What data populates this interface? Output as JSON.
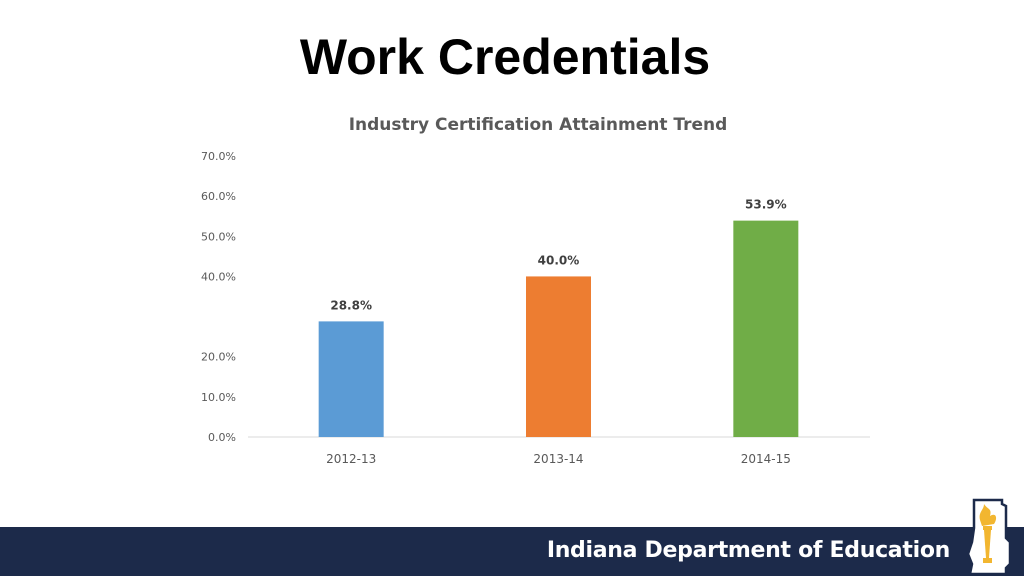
{
  "slide": {
    "title": "Work Credentials"
  },
  "chart_data": {
    "type": "bar",
    "title": "Industry Certification Attainment Trend",
    "categories": [
      "2012-13",
      "2013-14",
      "2014-15"
    ],
    "values": [
      28.8,
      40.0,
      53.9
    ],
    "data_labels": [
      "28.8%",
      "40.0%",
      "53.9%"
    ],
    "colors": [
      "#5b9bd5",
      "#ed7d31",
      "#70ad47"
    ],
    "yticks": [
      {
        "value": 70,
        "label": "70.0%"
      },
      {
        "value": 60,
        "label": "60.0%"
      },
      {
        "value": 50,
        "label": "50.0%"
      },
      {
        "value": 40,
        "label": "40.0%"
      },
      {
        "value": 20,
        "label": "20.0%"
      },
      {
        "value": 10,
        "label": "10.0%"
      },
      {
        "value": 0,
        "label": "0.0%"
      }
    ],
    "ylim": [
      0,
      70
    ],
    "grid": false,
    "legend": "none"
  },
  "footer": {
    "organization": "Indiana Department of Education",
    "band_color": "#1c2a4a"
  },
  "logo": {
    "icon": "indiana-torch-icon"
  }
}
